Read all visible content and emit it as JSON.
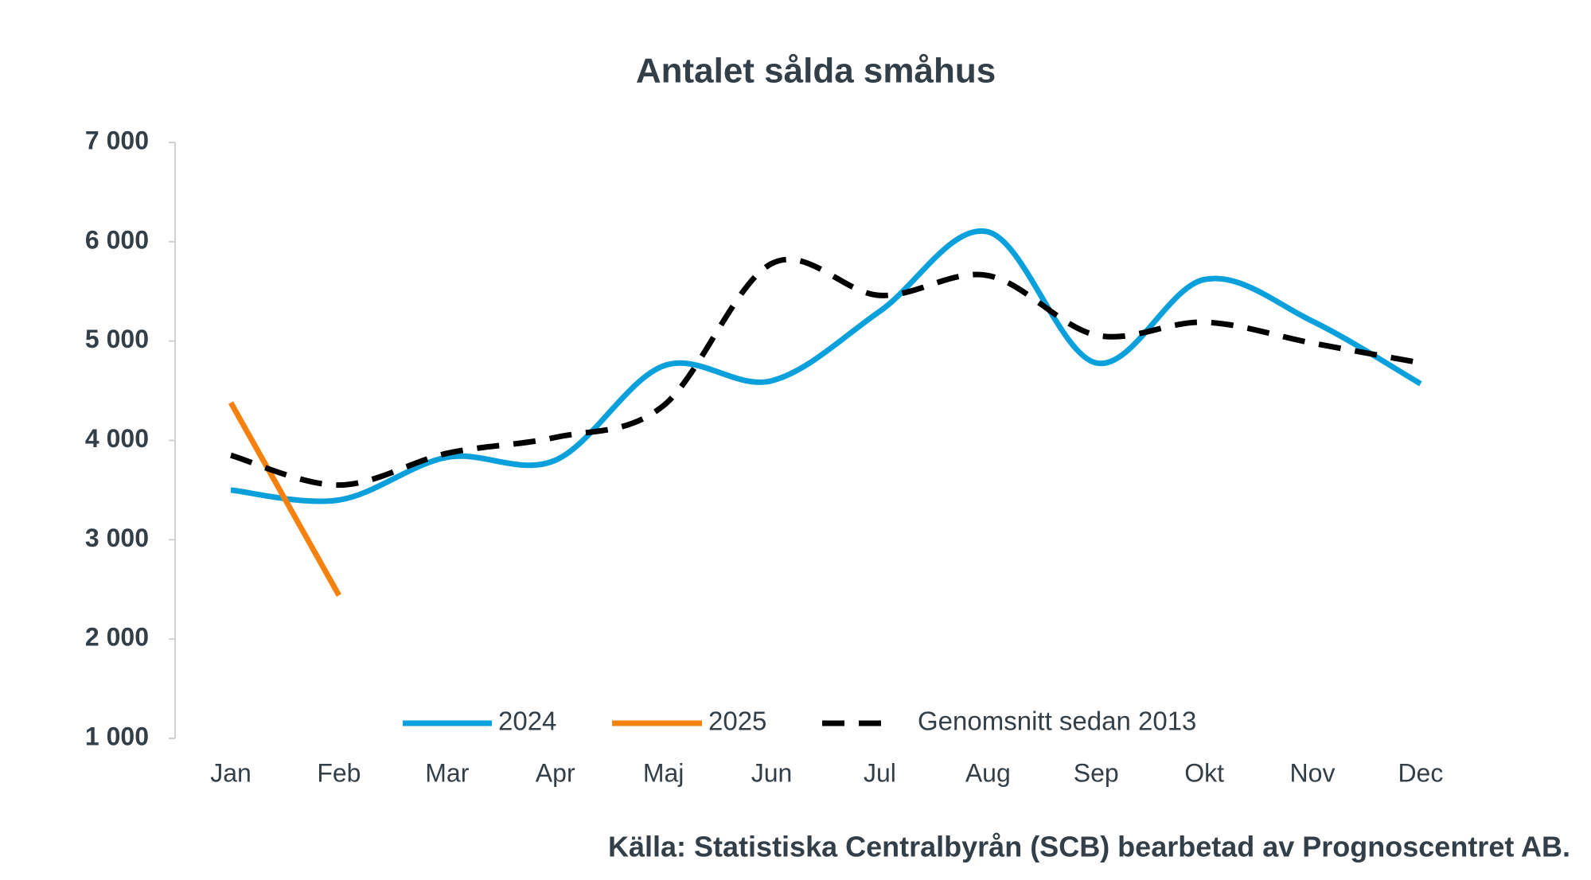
{
  "chart_data": {
    "type": "line",
    "title": "Antalet sålda småhus",
    "source": "Källa: Statistiska Centralbyrån (SCB) bearbetad av Prognoscentret AB.",
    "categories": [
      "Jan",
      "Feb",
      "Mar",
      "Apr",
      "Maj",
      "Jun",
      "Jul",
      "Aug",
      "Sep",
      "Okt",
      "Nov",
      "Dec"
    ],
    "series": [
      {
        "name": "2024",
        "color": "#0aa0dc",
        "smooth": true,
        "dash": false,
        "values": [
          3500,
          3400,
          3830,
          3800,
          4750,
          4600,
          5300,
          6100,
          4780,
          5620,
          5200,
          4570
        ]
      },
      {
        "name": "2025",
        "color": "#f5820f",
        "smooth": true,
        "dash": false,
        "values": [
          4380,
          2440,
          null,
          null,
          null,
          null,
          null,
          null,
          null,
          null,
          null,
          null
        ]
      },
      {
        "name": "Genomsnitt sedan 2013",
        "color": "#000000",
        "smooth": true,
        "dash": true,
        "values": [
          3850,
          3550,
          3870,
          4030,
          4350,
          5780,
          5460,
          5660,
          5060,
          5190,
          4980,
          4780
        ]
      }
    ],
    "ylim": [
      1000,
      7000
    ],
    "yticks": [
      {
        "value": 1000,
        "label": "1 000"
      },
      {
        "value": 2000,
        "label": "2 000"
      },
      {
        "value": 3000,
        "label": "3 000"
      },
      {
        "value": 4000,
        "label": "4 000"
      },
      {
        "value": 5000,
        "label": "5 000"
      },
      {
        "value": 6000,
        "label": "6 000"
      },
      {
        "value": 7000,
        "label": "7 000"
      }
    ],
    "grid": false,
    "legend": "bottom"
  }
}
